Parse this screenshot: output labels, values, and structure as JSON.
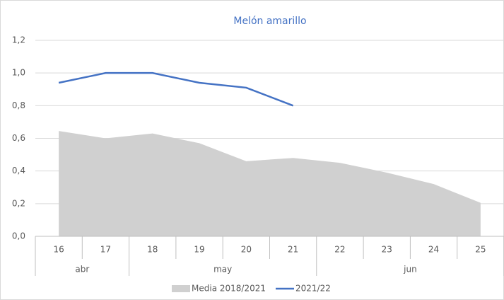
{
  "chart_data": {
    "type": "line",
    "title": "Melón amarillo",
    "categories": [
      "16",
      "17",
      "18",
      "19",
      "20",
      "21",
      "22",
      "23",
      "24",
      "25"
    ],
    "months": [
      "abr",
      "abr",
      "may",
      "may",
      "may",
      "may",
      "jun",
      "jun",
      "jun",
      "jun"
    ],
    "series": [
      {
        "name": "Media 2018/2021",
        "kind": "area",
        "color": "#d0d0d0",
        "values": [
          0.645,
          0.6,
          0.63,
          0.57,
          0.46,
          0.48,
          0.45,
          0.39,
          0.32,
          0.205
        ]
      },
      {
        "name": "2021/22",
        "kind": "line",
        "color": "#4472c4",
        "values": [
          0.94,
          1.0,
          1.0,
          0.94,
          0.91,
          0.8,
          null,
          null,
          null,
          null
        ]
      }
    ],
    "ylim": [
      0,
      1.2
    ],
    "yticks": [
      {
        "value": 0,
        "label": "0,0"
      },
      {
        "value": 0.2,
        "label": "0,2"
      },
      {
        "value": 0.4,
        "label": "0,4"
      },
      {
        "value": 0.6,
        "label": "0,6"
      },
      {
        "value": 0.8,
        "label": "0,8"
      },
      {
        "value": 1.0,
        "label": "1,0"
      },
      {
        "value": 1.2,
        "label": "1,2"
      }
    ],
    "grid": true,
    "legend": "bottom"
  }
}
